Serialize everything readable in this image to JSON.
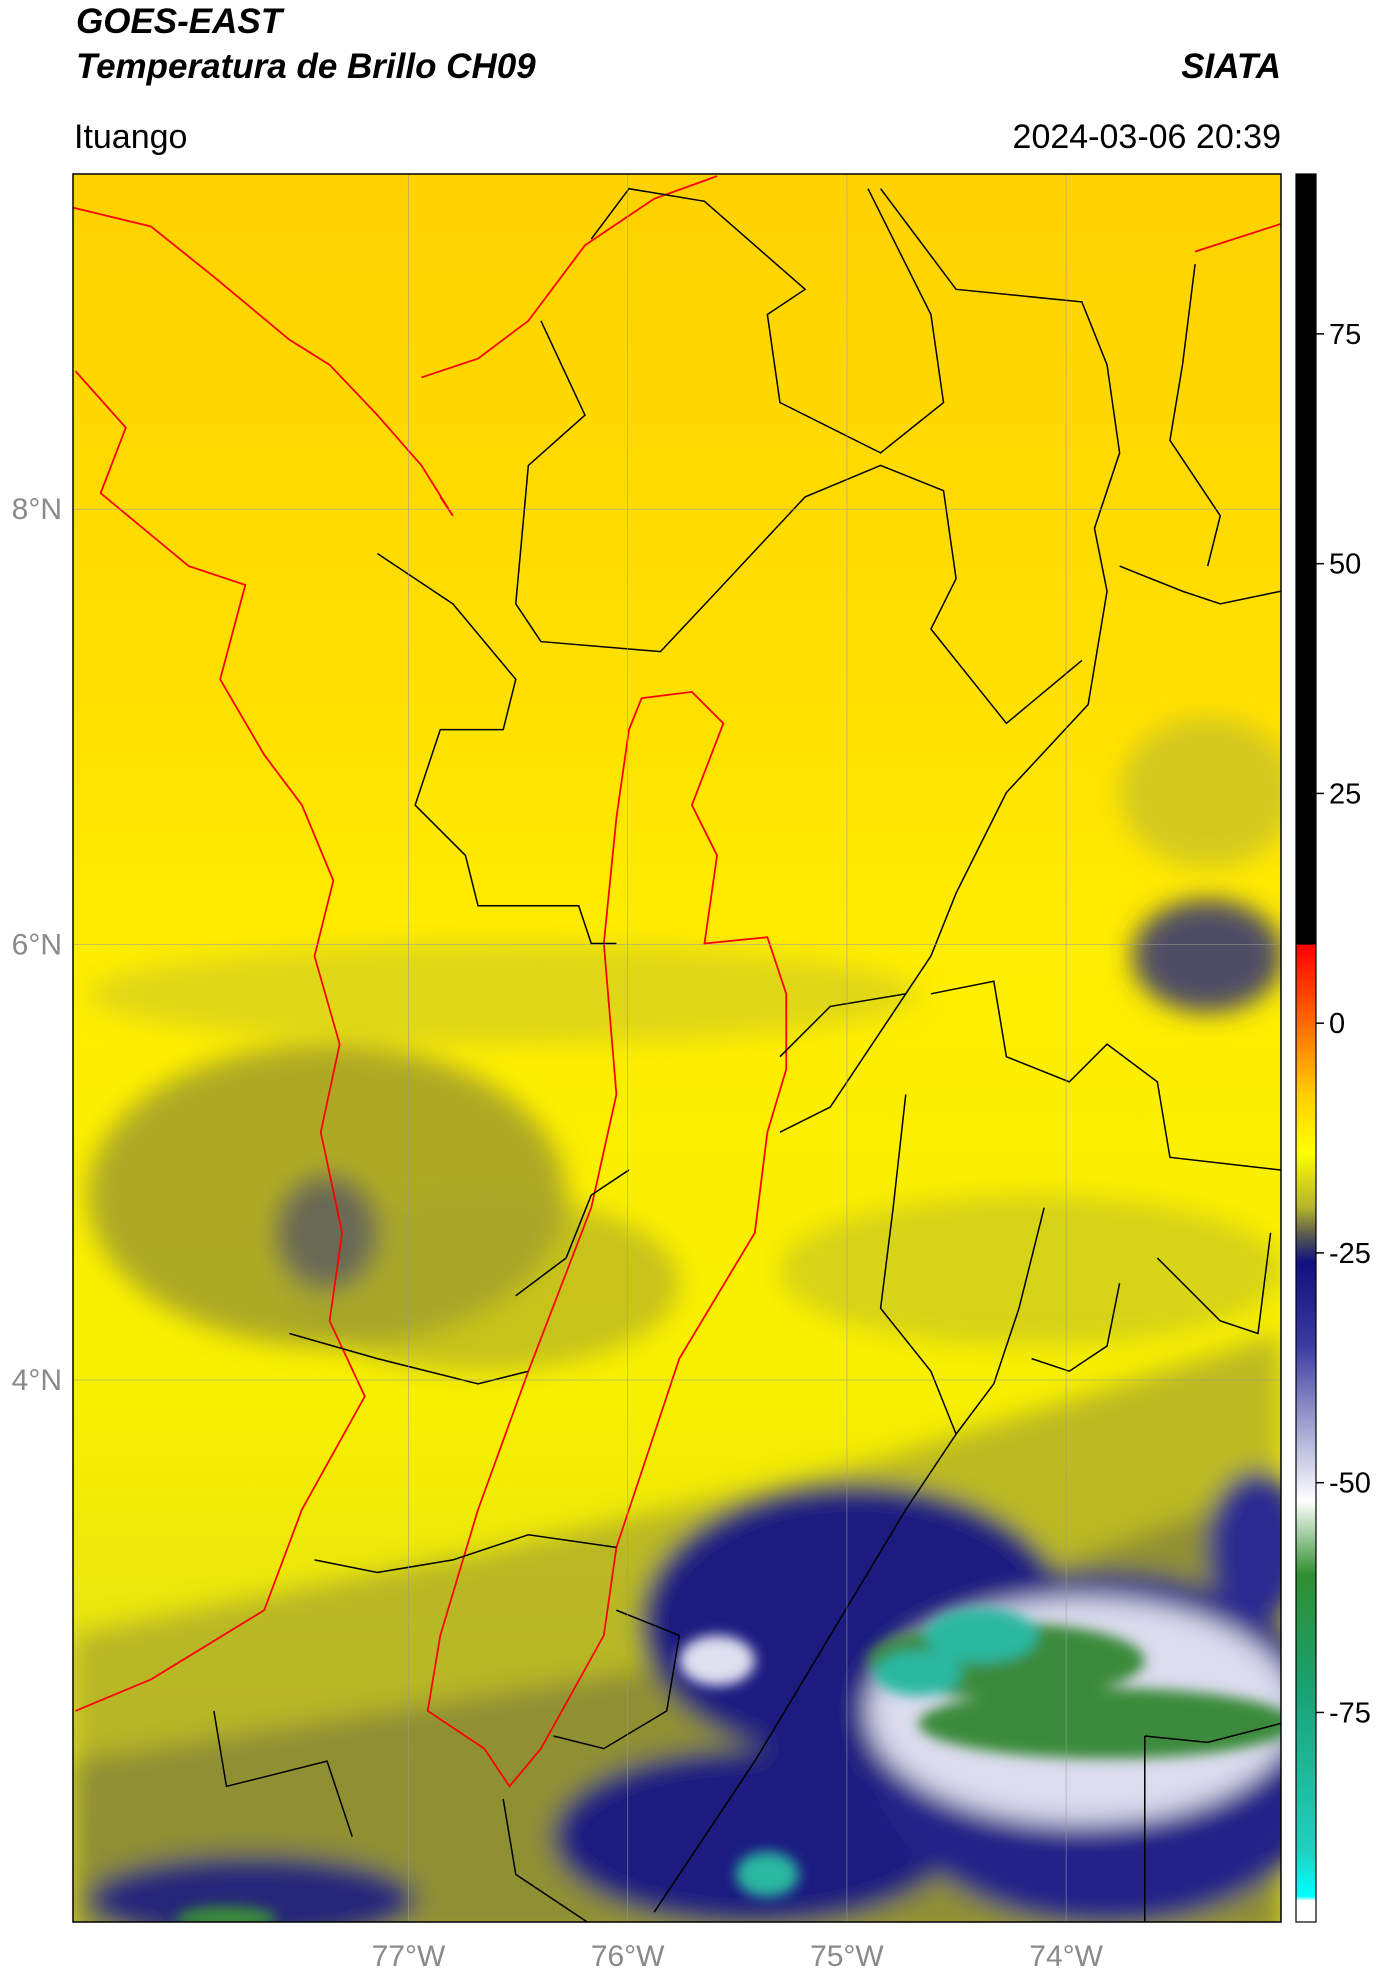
{
  "header": {
    "title": "GOES-EAST",
    "subtitle": "Temperatura de Brillo CH09",
    "agency": "SIATA",
    "location": "Ituango",
    "timestamp": "2024-03-06 20:39"
  },
  "map": {
    "xlim": [
      -78.53,
      -73.02
    ],
    "ylim": [
      1.51,
      9.54
    ],
    "xticks": [
      {
        "value": -77,
        "label": "77°W"
      },
      {
        "value": -76,
        "label": "76°W"
      },
      {
        "value": -75,
        "label": "75°W"
      },
      {
        "value": -74,
        "label": "74°W"
      }
    ],
    "yticks": [
      {
        "value": 8,
        "label": "8°N"
      },
      {
        "value": 6,
        "label": "6°N"
      },
      {
        "value": 4,
        "label": "4°N"
      }
    ],
    "grid": true
  },
  "colorbar": {
    "lim": [
      -97.8,
      92.4
    ],
    "ticks": [
      75,
      50,
      25,
      0,
      -25,
      -50,
      -75
    ],
    "colormap": [
      {
        "value": 92.4,
        "color": "#000000"
      },
      {
        "value": 8.6,
        "color": "#000000"
      },
      {
        "value": 8.5,
        "color": "#ff0000"
      },
      {
        "value": 0,
        "color": "#ff6a00"
      },
      {
        "value": -8,
        "color": "#ffd000"
      },
      {
        "value": -14,
        "color": "#ffff00"
      },
      {
        "value": -20,
        "color": "#b5b52a"
      },
      {
        "value": -23,
        "color": "#5a5a50"
      },
      {
        "value": -26,
        "color": "#101080"
      },
      {
        "value": -35,
        "color": "#3a3aa0"
      },
      {
        "value": -45,
        "color": "#b0b0d8"
      },
      {
        "value": -52,
        "color": "#ffffff"
      },
      {
        "value": -60,
        "color": "#2f8f2f"
      },
      {
        "value": -72,
        "color": "#1aa070"
      },
      {
        "value": -90,
        "color": "#20d0c0"
      },
      {
        "value": -95,
        "color": "#00ffff"
      },
      {
        "value": -95.5,
        "color": "#ffffff"
      },
      {
        "value": -97.8,
        "color": "#ffffff"
      }
    ]
  }
}
